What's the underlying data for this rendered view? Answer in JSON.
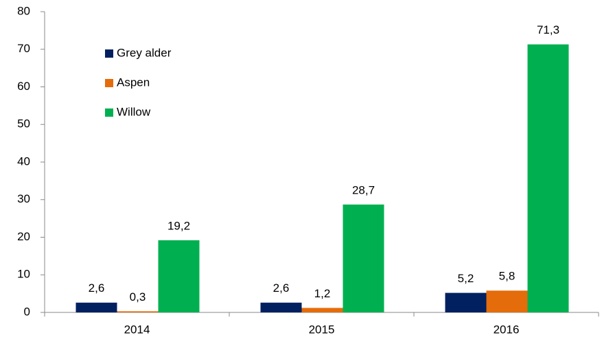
{
  "chart_data": {
    "type": "bar",
    "categories": [
      "2014",
      "2015",
      "2016"
    ],
    "series": [
      {
        "name": "Grey alder",
        "color": "#002060",
        "values": [
          2.6,
          2.6,
          5.2
        ],
        "value_labels": [
          "2,6",
          "2,6",
          "5,2"
        ]
      },
      {
        "name": "Aspen",
        "color": "#e46c0a",
        "values": [
          0.3,
          1.2,
          5.8
        ],
        "value_labels": [
          "0,3",
          "1,2",
          "5,8"
        ]
      },
      {
        "name": "Willow",
        "color": "#00b050",
        "values": [
          19.2,
          28.7,
          71.3
        ],
        "value_labels": [
          "19,2",
          "28,7",
          "71,3"
        ]
      }
    ],
    "ylim": [
      0,
      80
    ],
    "yticks": [
      0,
      10,
      20,
      30,
      40,
      50,
      60,
      70,
      80
    ],
    "grid": false,
    "legend": "upper left"
  }
}
